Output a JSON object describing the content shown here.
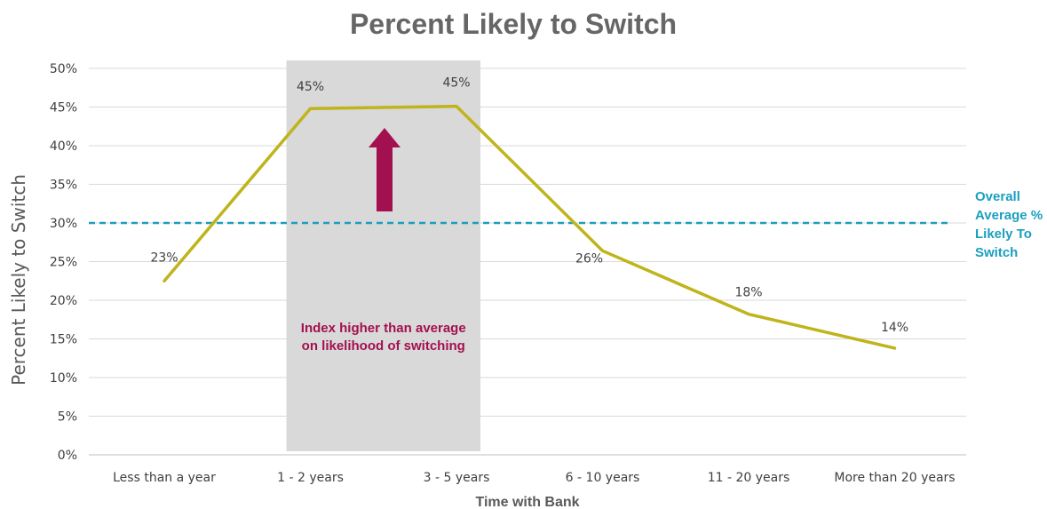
{
  "chart_data": {
    "type": "line",
    "title": "Percent Likely to Switch",
    "xlabel": "Time with Bank",
    "ylabel": "Percent Likely to Switch",
    "categories": [
      "Less than a year",
      "1 - 2 years",
      "3 - 5 years",
      "6 - 10 years",
      "11 - 20 years",
      "More than 20 years"
    ],
    "series": [
      {
        "values": [
          22.5,
          44.8,
          45.1,
          26.4,
          18.2,
          13.8
        ],
        "color": "#c0b41c"
      }
    ],
    "data_labels": [
      "23%",
      "45%",
      "45%",
      "26%",
      "18%",
      "14%"
    ],
    "ylim": [
      0,
      50
    ],
    "yticks": [
      0,
      5,
      10,
      15,
      20,
      25,
      30,
      35,
      40,
      45,
      50
    ],
    "ytick_labels": [
      "0%",
      "5%",
      "10%",
      "15%",
      "20%",
      "25%",
      "30%",
      "35%",
      "40%",
      "45%",
      "50%"
    ],
    "grid": true,
    "reference_line": {
      "value": 30,
      "label_lines": [
        "Overall",
        "Average %",
        "Likely To",
        "Switch"
      ],
      "color": "#1a9fbf"
    },
    "highlight_region": {
      "from_category": "1 - 2 years",
      "to_category": "3 - 5 years",
      "color": "#d9d9d9",
      "annotation_lines": [
        "Index higher than average",
        "on likelihood of switching"
      ],
      "annotation_color": "#a3104f"
    },
    "arrow": {
      "direction": "up",
      "color": "#a3104f"
    }
  }
}
